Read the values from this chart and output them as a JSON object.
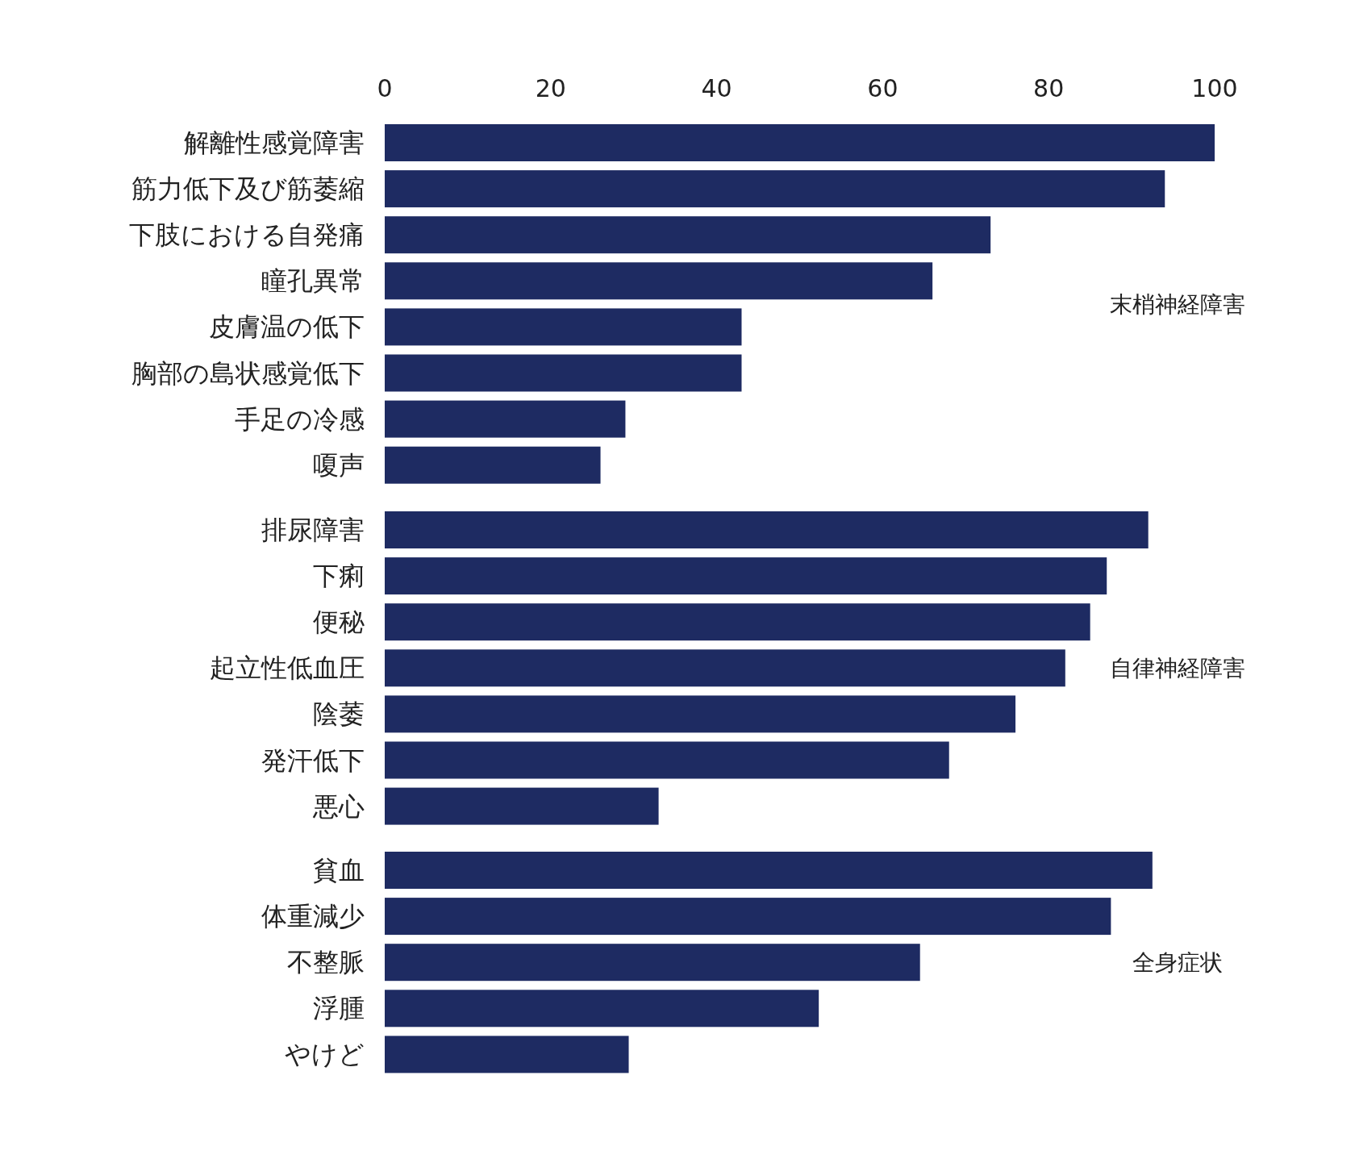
{
  "chart_data": [
    {
      "type": "bar",
      "orientation": "horizontal",
      "color": "#1e2b62",
      "xlim": [
        0,
        100
      ],
      "xticks": [
        0,
        20,
        40,
        60,
        80,
        100
      ],
      "categories": [
        "解離性感覚障害",
        "筋力低下及び筋萎縮",
        "下肢における自発痛",
        "瞳孔異常",
        "皮膚温の低下",
        "胸部の島状感覚低下",
        "手足の冷感",
        "嗄声"
      ],
      "values": [
        100,
        94,
        73,
        66,
        43,
        43,
        29,
        26
      ],
      "annotations": [
        "末梢神経障害"
      ]
    },
    {
      "type": "bar",
      "orientation": "horizontal",
      "color": "#1e2b62",
      "xlim": [
        0,
        100
      ],
      "tick_labels": "y",
      "categories": [
        "排尿障害",
        "下痢",
        "便秘",
        "起立性低血圧",
        "陰萎",
        "発汗低下",
        "悪心"
      ],
      "values": [
        92,
        87,
        85,
        82,
        76,
        68,
        33
      ],
      "annotations": [
        "自律神経障害"
      ]
    },
    {
      "type": "bar",
      "orientation": "horizontal",
      "color": "#1e2b62",
      "xlim": [
        0,
        100
      ],
      "tick_labels": "y",
      "categories": [
        "貧血",
        "体重減少",
        "不整脈",
        "浮腫",
        "やけど"
      ],
      "values": [
        92.5,
        87.5,
        64.5,
        52.3,
        29.4
      ],
      "annotations": [
        "全身症状"
      ]
    }
  ]
}
